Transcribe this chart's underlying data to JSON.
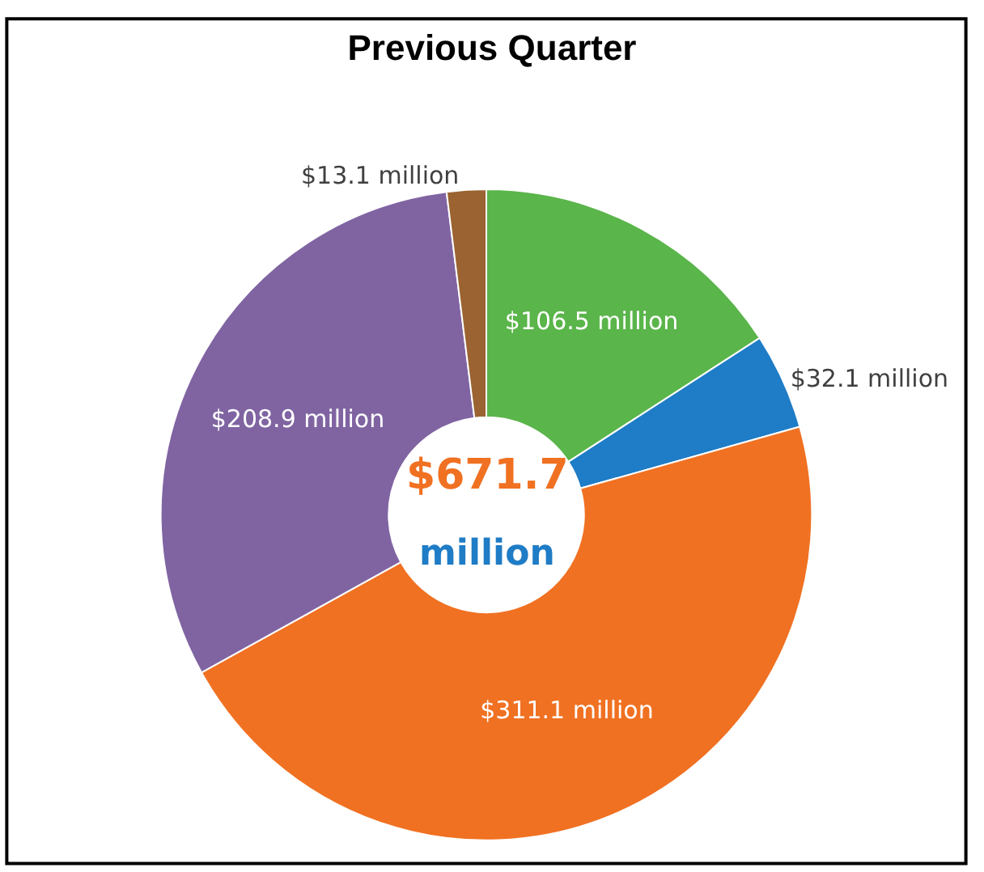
{
  "chart_data": {
    "type": "donut",
    "title": "Previous Quarter",
    "categories": [
      null,
      null,
      null,
      null,
      null
    ],
    "values": [
      106.5,
      32.1,
      311.1,
      208.9,
      13.1
    ],
    "colors": [
      "#5ab54a",
      "#1f7cc6",
      "#f07122",
      "#8064a2",
      "#9a6331"
    ],
    "value_labels": [
      "$106.5 million",
      "$32.1 million",
      "$311.1 million",
      "$208.9 million",
      "$13.1 million"
    ],
    "annotations": [
      "$671.7",
      "million"
    ],
    "legend": false
  }
}
